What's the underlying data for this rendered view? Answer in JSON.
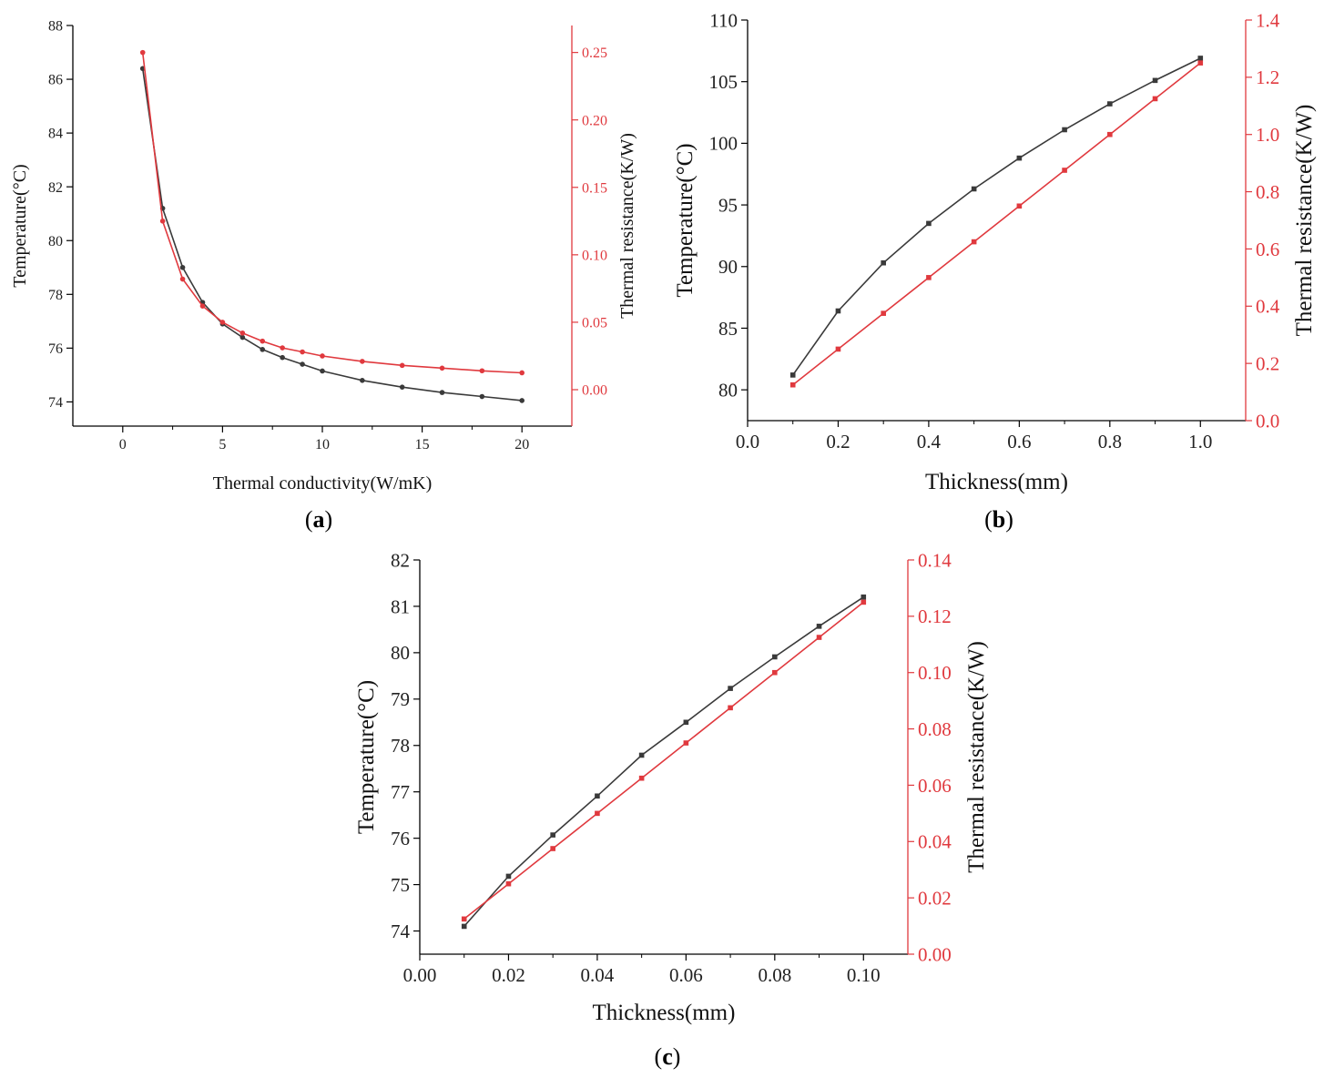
{
  "colors": {
    "black_series": "#3a3a3a",
    "red_series": "#e0393e",
    "axis": "#000000"
  },
  "chart_data": [
    {
      "type": "line",
      "panel": "a",
      "xlabel": "Thermal conductivity(W/mK)",
      "ylabel_left": "Temperature(°C)",
      "ylabel_right": "Thermal resistance(K/W)",
      "xlim": [
        -2.5,
        22.5
      ],
      "ylim_left": [
        73.1,
        88
      ],
      "ylim_right": [
        -0.027,
        0.27
      ],
      "xticks": [
        0,
        5,
        10,
        15,
        20
      ],
      "xtick_labels": [
        "0",
        "5",
        "10",
        "15",
        "20"
      ],
      "yticks_left": [
        74,
        76,
        78,
        80,
        82,
        84,
        86,
        88
      ],
      "ytick_labels_left": [
        "74",
        "76",
        "78",
        "80",
        "82",
        "84",
        "86",
        "88"
      ],
      "yticks_right": [
        0.0,
        0.05,
        0.1,
        0.15,
        0.2,
        0.25
      ],
      "ytick_labels_right": [
        "0.00",
        "0.05",
        "0.10",
        "0.15",
        "0.20",
        "0.25"
      ],
      "series": [
        {
          "axis": "left",
          "color": "#3a3a3a",
          "marker": "circle",
          "x": [
            1,
            2,
            3,
            4,
            5,
            6,
            7,
            8,
            9,
            10,
            12,
            14,
            16,
            18,
            20
          ],
          "values": [
            86.4,
            81.2,
            79.0,
            77.7,
            76.9,
            76.4,
            75.95,
            75.65,
            75.4,
            75.15,
            74.8,
            74.55,
            74.35,
            74.2,
            74.05
          ]
        },
        {
          "axis": "right",
          "color": "#e0393e",
          "marker": "circle",
          "x": [
            1,
            2,
            3,
            4,
            5,
            6,
            7,
            8,
            9,
            10,
            12,
            14,
            16,
            18,
            20
          ],
          "values": [
            0.25,
            0.125,
            0.082,
            0.062,
            0.05,
            0.042,
            0.036,
            0.031,
            0.028,
            0.025,
            0.021,
            0.018,
            0.016,
            0.014,
            0.0125
          ]
        }
      ],
      "caption": "(a)",
      "caption_letter": "a"
    },
    {
      "type": "line",
      "panel": "b",
      "xlabel": "Thickness(mm)",
      "ylabel_left": "Temperature(°C)",
      "ylabel_right": "Thermal resistance(K/W)",
      "xlim": [
        0.0,
        1.1
      ],
      "ylim_left": [
        77.5,
        110
      ],
      "ylim_right": [
        0.0,
        1.4
      ],
      "xticks": [
        0.0,
        0.2,
        0.4,
        0.6,
        0.8,
        1.0
      ],
      "xtick_labels": [
        "0.0",
        "0.2",
        "0.4",
        "0.6",
        "0.8",
        "1.0"
      ],
      "yticks_left": [
        80,
        85,
        90,
        95,
        100,
        105,
        110
      ],
      "ytick_labels_left": [
        "80",
        "85",
        "90",
        "95",
        "100",
        "105",
        "110"
      ],
      "yticks_right": [
        0.0,
        0.2,
        0.4,
        0.6,
        0.8,
        1.0,
        1.2,
        1.4
      ],
      "ytick_labels_right": [
        "0.0",
        "0.2",
        "0.4",
        "0.6",
        "0.8",
        "1.0",
        "1.2",
        "1.4"
      ],
      "series": [
        {
          "axis": "left",
          "color": "#3a3a3a",
          "marker": "square",
          "x": [
            0.1,
            0.2,
            0.3,
            0.4,
            0.5,
            0.6,
            0.7,
            0.8,
            0.9,
            1.0
          ],
          "values": [
            81.2,
            86.4,
            90.3,
            93.5,
            96.3,
            98.8,
            101.1,
            103.2,
            105.1,
            106.9
          ]
        },
        {
          "axis": "right",
          "color": "#e0393e",
          "marker": "square",
          "x": [
            0.1,
            0.2,
            0.3,
            0.4,
            0.5,
            0.6,
            0.7,
            0.8,
            0.9,
            1.0
          ],
          "values": [
            0.125,
            0.25,
            0.375,
            0.5,
            0.625,
            0.75,
            0.875,
            1.0,
            1.125,
            1.25
          ]
        }
      ],
      "caption": "(b)",
      "caption_letter": "b"
    },
    {
      "type": "line",
      "panel": "c",
      "xlabel": "Thickness(mm)",
      "ylabel_left": "Temperature(°C)",
      "ylabel_right": "Thermal resistance(K/W)",
      "xlim": [
        0.0,
        0.11
      ],
      "ylim_left": [
        73.5,
        82
      ],
      "ylim_right": [
        0.0,
        0.14
      ],
      "xticks": [
        0.0,
        0.02,
        0.04,
        0.06,
        0.08,
        0.1
      ],
      "xtick_labels": [
        "0.00",
        "0.02",
        "0.04",
        "0.06",
        "0.08",
        "0.10"
      ],
      "yticks_left": [
        74,
        75,
        76,
        77,
        78,
        79,
        80,
        81,
        82
      ],
      "ytick_labels_left": [
        "74",
        "75",
        "76",
        "77",
        "78",
        "79",
        "80",
        "81",
        "82"
      ],
      "yticks_right": [
        0.0,
        0.02,
        0.04,
        0.06,
        0.08,
        0.1,
        0.12,
        0.14
      ],
      "ytick_labels_right": [
        "0.00",
        "0.02",
        "0.04",
        "0.06",
        "0.08",
        "0.10",
        "0.12",
        "0.14"
      ],
      "series": [
        {
          "axis": "left",
          "color": "#3a3a3a",
          "marker": "square",
          "x": [
            0.01,
            0.02,
            0.03,
            0.04,
            0.05,
            0.06,
            0.07,
            0.08,
            0.09,
            0.1
          ],
          "values": [
            74.1,
            75.18,
            76.07,
            76.91,
            77.79,
            78.5,
            79.23,
            79.91,
            80.57,
            81.2
          ]
        },
        {
          "axis": "right",
          "color": "#e0393e",
          "marker": "square",
          "x": [
            0.01,
            0.02,
            0.03,
            0.04,
            0.05,
            0.06,
            0.07,
            0.08,
            0.09,
            0.1
          ],
          "values": [
            0.0125,
            0.025,
            0.0375,
            0.05,
            0.0625,
            0.075,
            0.0875,
            0.1,
            0.1125,
            0.125
          ]
        }
      ],
      "caption": "(c)",
      "caption_letter": "c"
    }
  ]
}
